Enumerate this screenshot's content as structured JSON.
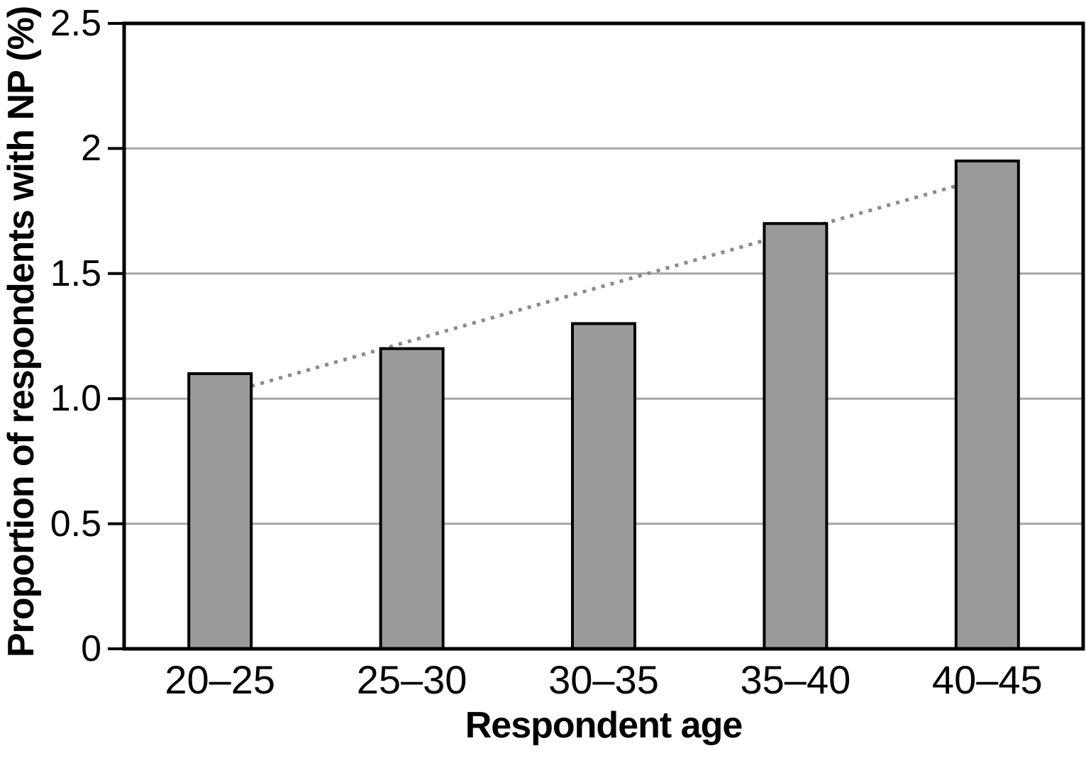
{
  "figure": {
    "background": "#ffffff"
  },
  "chart_data": {
    "type": "bar",
    "title": "",
    "xlabel": "Respondent age",
    "ylabel": "Proportion of respondents with NP (%)",
    "categories": [
      "20–25",
      "25–30",
      "30–35",
      "35–40",
      "40–45"
    ],
    "values": [
      1.1,
      1.2,
      1.3,
      1.7,
      1.95
    ],
    "series_name": "Proportion of respondents with NP",
    "ylim": [
      0,
      2.5
    ],
    "yticks": [
      {
        "value": 0,
        "label": "0"
      },
      {
        "value": 0.5,
        "label": "0.5"
      },
      {
        "value": 1,
        "label": "1.0"
      },
      {
        "value": 1.5,
        "label": "1.5"
      },
      {
        "value": 2,
        "label": "2"
      },
      {
        "value": 2.5,
        "label": "2.5"
      }
    ],
    "gridline_values": [
      0.5,
      1,
      1.5,
      2
    ],
    "grid": "horizontal",
    "legend": "none",
    "trendline": {
      "style": "dotted",
      "position": "behind-bars",
      "start": {
        "category_index": 0,
        "anchor": "bar-right-edge",
        "value": 1.05
      },
      "end": {
        "category_index": 4,
        "anchor": "bar-left-edge",
        "value": 1.85
      }
    },
    "colors": {
      "bar_fill": "#9a9a9a",
      "bar_border": "#000000",
      "gridline": "#a6a6a6",
      "axis": "#000000",
      "trendline": "#8a8a8a",
      "text": "#000000",
      "background": "#ffffff"
    }
  }
}
